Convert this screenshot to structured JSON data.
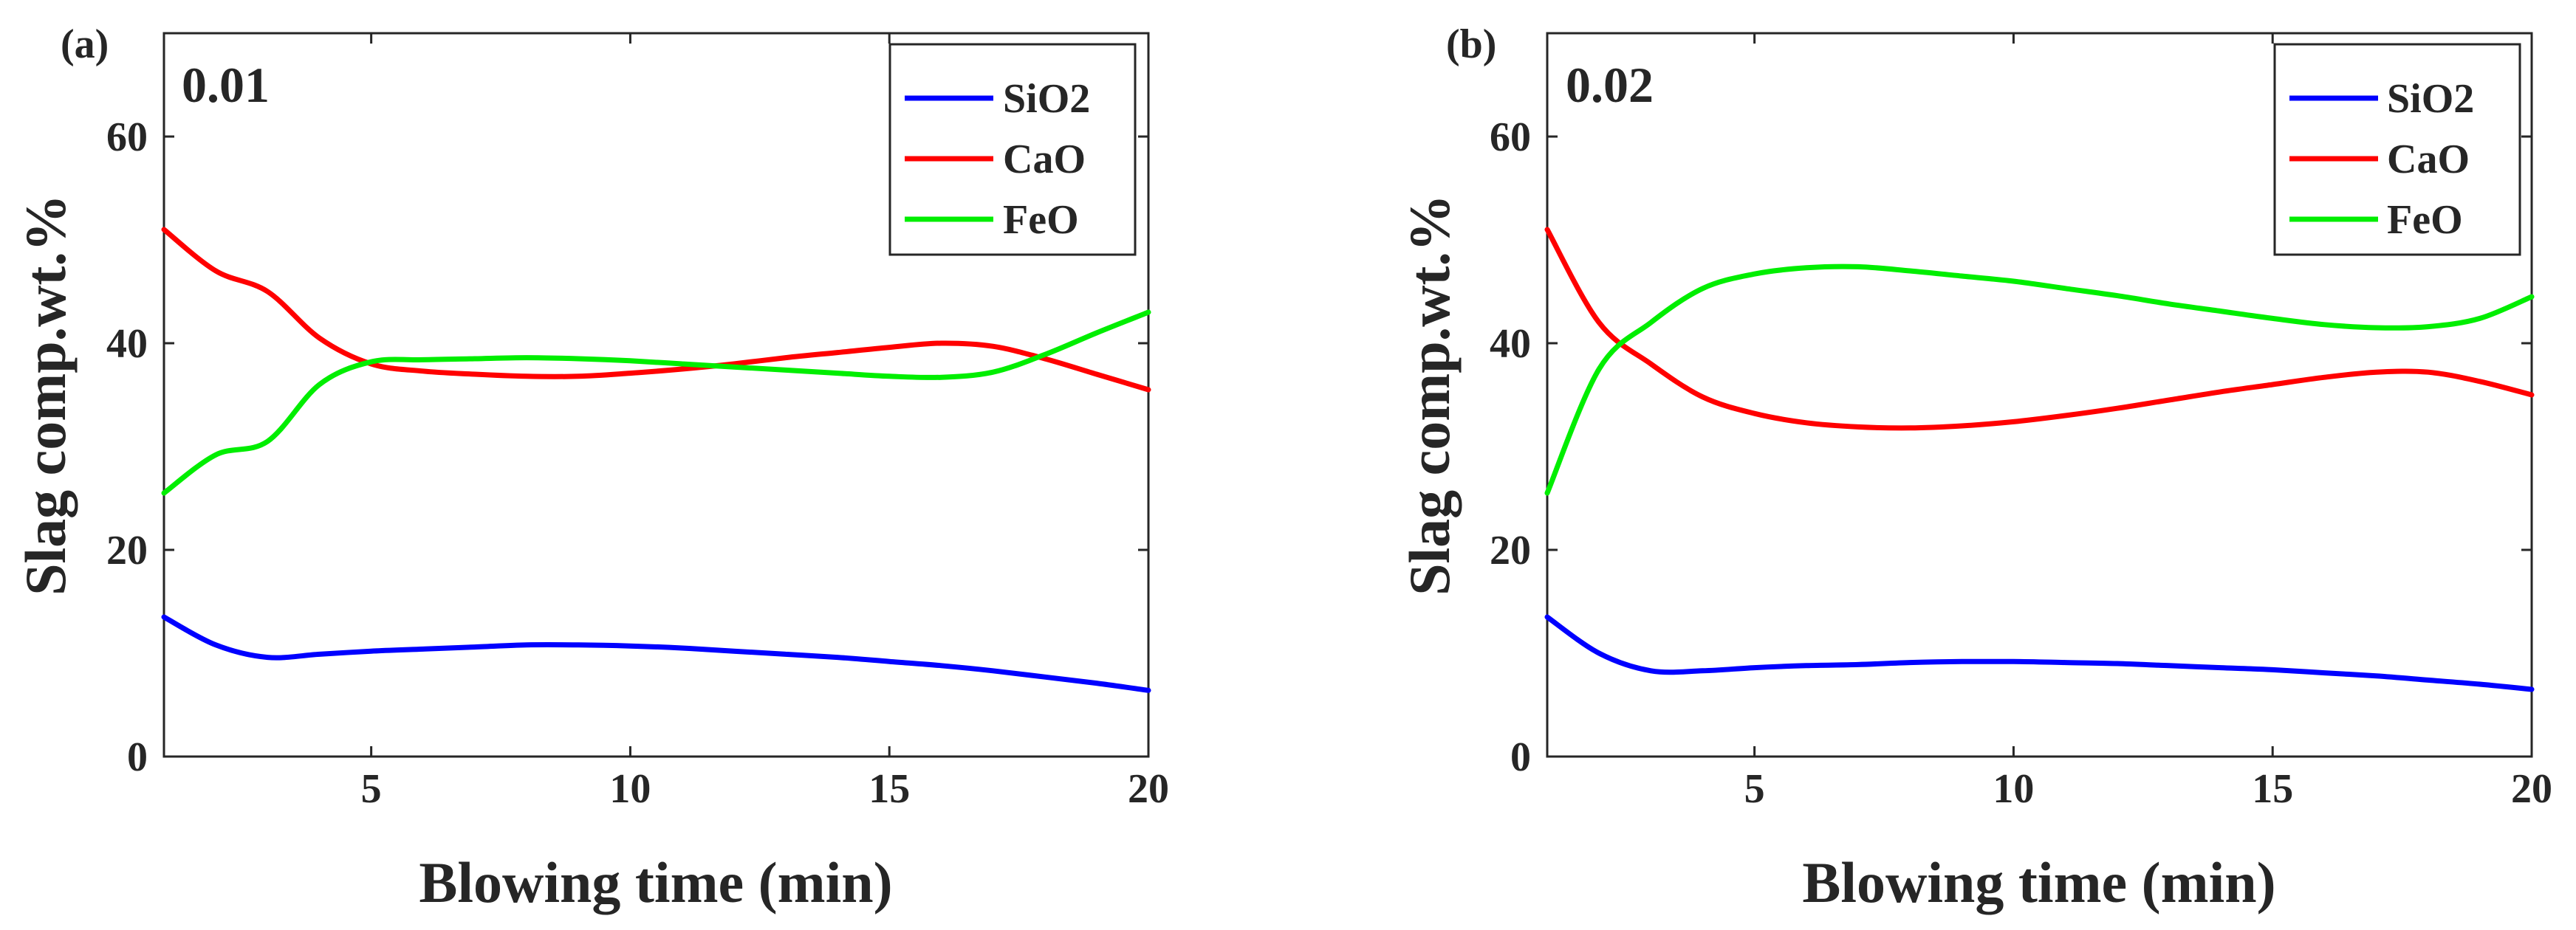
{
  "chart_data": [
    {
      "type": "line",
      "panel_label": "(a)",
      "annotation": "0.01",
      "xlabel": "Blowing time (min)",
      "ylabel": "Slag comp.wt.%",
      "xlim": [
        1,
        20
      ],
      "ylim": [
        0,
        70
      ],
      "xticks": [
        5,
        10,
        15,
        20
      ],
      "yticks": [
        0,
        20,
        40,
        60
      ],
      "xtick_labels": [
        "5",
        "10",
        "15",
        "20"
      ],
      "ytick_labels": [
        "0",
        "20",
        "40",
        "60"
      ],
      "grid": false,
      "legend_position": "top-right",
      "x": [
        1,
        2,
        3,
        4,
        5,
        6,
        7,
        8,
        9,
        10,
        11,
        12,
        13,
        14,
        15,
        16,
        17,
        18,
        19,
        20
      ],
      "series": [
        {
          "name": "SiO2",
          "color": "#0000ff",
          "values": [
            13.5,
            10.8,
            9.6,
            9.9,
            10.2,
            10.4,
            10.6,
            10.8,
            10.8,
            10.7,
            10.5,
            10.2,
            9.9,
            9.6,
            9.2,
            8.8,
            8.3,
            7.7,
            7.1,
            6.4
          ]
        },
        {
          "name": "CaO",
          "color": "#ff0000",
          "values": [
            51.0,
            47.0,
            45.0,
            40.5,
            38.0,
            37.3,
            37.0,
            36.8,
            36.8,
            37.1,
            37.5,
            38.0,
            38.6,
            39.1,
            39.6,
            40.0,
            39.7,
            38.5,
            37.0,
            35.5
          ]
        },
        {
          "name": "FeO",
          "color": "#00ee00",
          "values": [
            25.5,
            29.2,
            30.5,
            36.0,
            38.2,
            38.4,
            38.5,
            38.6,
            38.5,
            38.3,
            38.0,
            37.7,
            37.4,
            37.1,
            36.8,
            36.7,
            37.2,
            38.9,
            41.0,
            43.0
          ]
        }
      ]
    },
    {
      "type": "line",
      "panel_label": "(b)",
      "annotation": "0.02",
      "xlabel": "Blowing time (min)",
      "ylabel": "Slag comp.wt.%",
      "xlim": [
        1,
        20
      ],
      "ylim": [
        0,
        70
      ],
      "xticks": [
        5,
        10,
        15,
        20
      ],
      "yticks": [
        0,
        20,
        40,
        60
      ],
      "xtick_labels": [
        "5",
        "10",
        "15",
        "20"
      ],
      "ytick_labels": [
        "0",
        "20",
        "40",
        "60"
      ],
      "grid": false,
      "legend_position": "top-right",
      "x": [
        1,
        2,
        3,
        4,
        5,
        6,
        7,
        8,
        9,
        10,
        11,
        12,
        13,
        14,
        15,
        16,
        17,
        18,
        19,
        20
      ],
      "series": [
        {
          "name": "SiO2",
          "color": "#0000ff",
          "values": [
            13.5,
            10.0,
            8.3,
            8.3,
            8.6,
            8.8,
            8.9,
            9.1,
            9.2,
            9.2,
            9.1,
            9.0,
            8.8,
            8.6,
            8.4,
            8.1,
            7.8,
            7.4,
            7.0,
            6.5
          ]
        },
        {
          "name": "CaO",
          "color": "#ff0000",
          "values": [
            51.0,
            42.0,
            38.0,
            34.8,
            33.2,
            32.3,
            31.9,
            31.8,
            32.0,
            32.4,
            33.0,
            33.7,
            34.5,
            35.3,
            36.0,
            36.7,
            37.2,
            37.2,
            36.3,
            35.0
          ]
        },
        {
          "name": "FeO",
          "color": "#00ee00",
          "values": [
            25.5,
            37.5,
            42.0,
            45.3,
            46.7,
            47.3,
            47.4,
            47.0,
            46.5,
            46.0,
            45.3,
            44.6,
            43.8,
            43.1,
            42.4,
            41.8,
            41.5,
            41.6,
            42.4,
            44.5
          ]
        }
      ]
    }
  ]
}
